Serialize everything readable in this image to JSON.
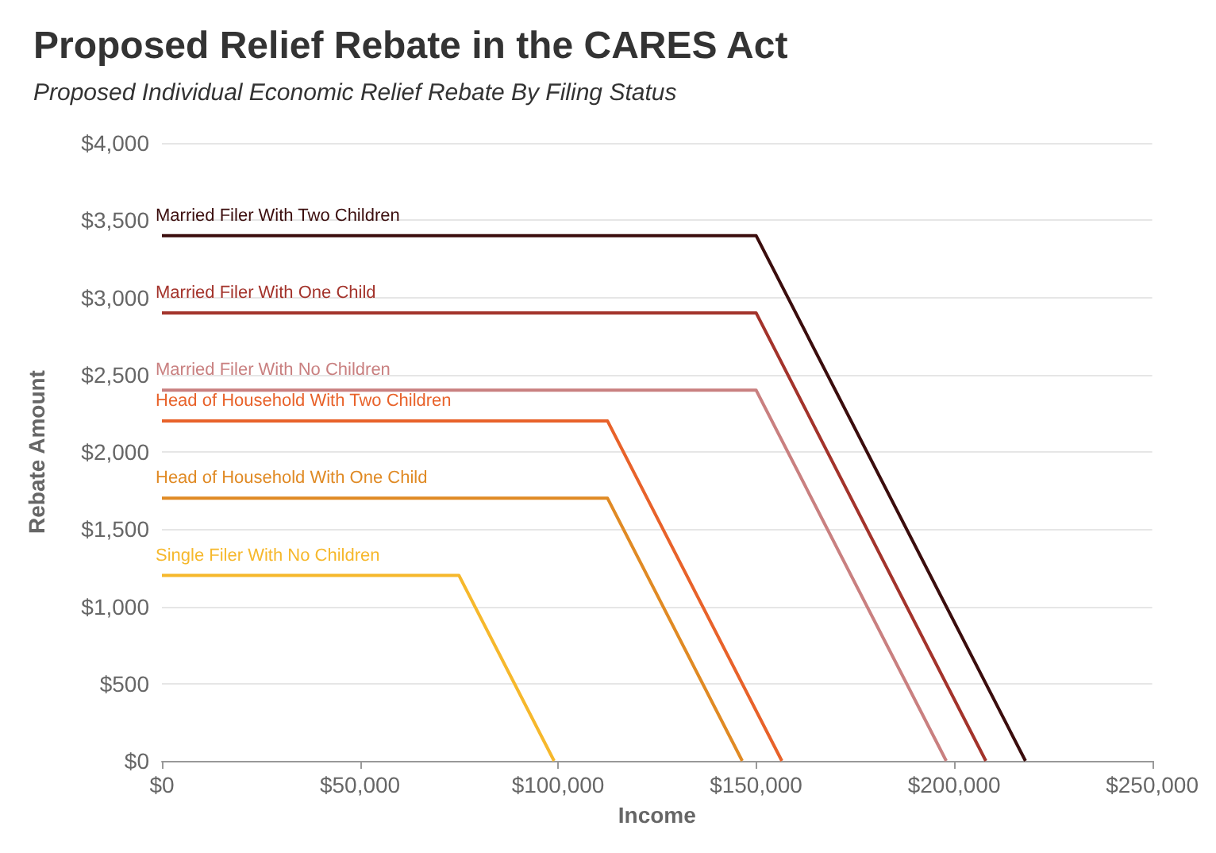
{
  "chart_data": {
    "type": "line",
    "title": "Proposed Relief Rebate in the CARES Act",
    "subtitle": "Proposed Individual Economic Relief Rebate By Filing Status",
    "xlabel": "Income",
    "ylabel": "Rebate Amount",
    "series": [
      {
        "name": "Married Filer With Two Children",
        "color": "#3b0d0d",
        "x": [
          0,
          150000,
          218000
        ],
        "values": [
          3400,
          3400,
          0
        ]
      },
      {
        "name": "Married Filer With One Child",
        "color": "#a3332b",
        "x": [
          0,
          150000,
          208000
        ],
        "values": [
          2900,
          2900,
          0
        ]
      },
      {
        "name": "Married Filer With No Children",
        "color": "#c98080",
        "x": [
          0,
          150000,
          198000
        ],
        "values": [
          2400,
          2400,
          0
        ]
      },
      {
        "name": "Head of Household With Two Children",
        "color": "#e8622a",
        "x": [
          0,
          112500,
          156500
        ],
        "values": [
          2200,
          2200,
          0
        ]
      },
      {
        "name": "Head of Household With One Child",
        "color": "#e08a24",
        "x": [
          0,
          112500,
          146500
        ],
        "values": [
          1700,
          1700,
          0
        ]
      },
      {
        "name": "Single Filer With No Children",
        "color": "#f6b82c",
        "x": [
          0,
          75000,
          99000
        ],
        "values": [
          1200,
          1200,
          0
        ]
      }
    ],
    "xlim": [
      0,
      250000
    ],
    "xticks": [
      {
        "value": 0,
        "label": "$0"
      },
      {
        "value": 50000,
        "label": "$50,000"
      },
      {
        "value": 100000,
        "label": "$100,000"
      },
      {
        "value": 150000,
        "label": "$150,000"
      },
      {
        "value": 200000,
        "label": "$200,000"
      },
      {
        "value": 250000,
        "label": "$250,000"
      }
    ],
    "ylim": [
      0,
      4000
    ],
    "yticks": [
      {
        "value": 0,
        "label": "$0"
      },
      {
        "value": 500,
        "label": "$500"
      },
      {
        "value": 1000,
        "label": "$1,000"
      },
      {
        "value": 1500,
        "label": "$1,500"
      },
      {
        "value": 2000,
        "label": "$2,000"
      },
      {
        "value": 2500,
        "label": "$2,500"
      },
      {
        "value": 3000,
        "label": "$3,000"
      },
      {
        "value": 3500,
        "label": "$3,500"
      },
      {
        "value": 4000,
        "label": "$4,000"
      }
    ],
    "grid": "y",
    "marker": "none",
    "line_style": "solid"
  }
}
